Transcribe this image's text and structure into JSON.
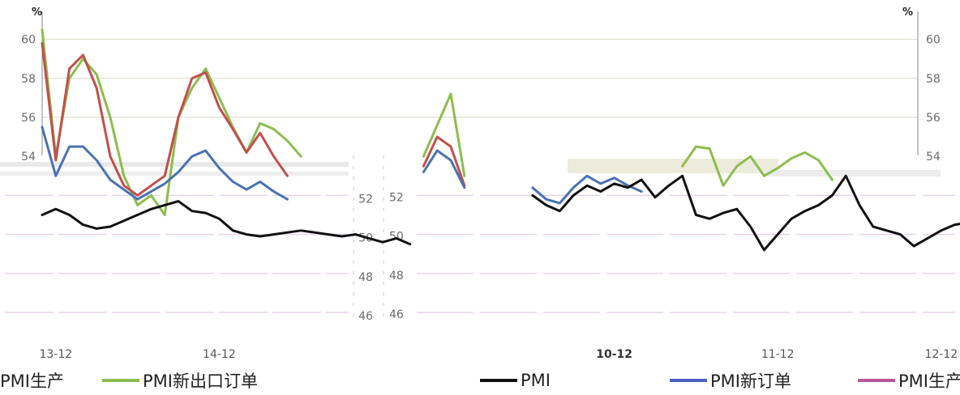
{
  "chart_data": {
    "type": "line",
    "unit_left": "%",
    "unit_right": "%",
    "y_ticks_upper_left": [
      "60",
      "58",
      "56",
      "54"
    ],
    "y_ticks_upper_right": [
      "60",
      "58",
      "56",
      "54"
    ],
    "y_ticks_lower_left": [
      "52",
      "50",
      "48",
      "46"
    ],
    "y_ticks_lower_right": [
      "52",
      "50",
      "48",
      "46"
    ],
    "ylim": [
      45.5,
      61
    ],
    "grid": true,
    "legend_position": "bottom",
    "x_ticks": [
      {
        "label": "13-12",
        "pos": 1,
        "bold": false
      },
      {
        "label": "14-12",
        "pos": 13,
        "bold": false
      },
      {
        "label": "10-12",
        "pos": 42,
        "bold": true
      },
      {
        "label": "11-12",
        "pos": 54,
        "bold": false
      },
      {
        "label": "12-12",
        "pos": 66,
        "bold": false
      }
    ],
    "series": [
      {
        "name": "PMI新出口订单",
        "color": "#8cbd4e",
        "segments": [
          {
            "x": [
              0,
              1,
              2,
              3,
              4,
              5,
              6,
              7,
              8,
              9,
              10,
              11,
              12,
              13,
              14,
              15,
              16,
              17,
              18,
              19
            ],
            "y": [
              60.5,
              54.0,
              58.0,
              59.0,
              58.2,
              56.0,
              53.0,
              51.5,
              52.0,
              51.0,
              56.0,
              57.5,
              58.5,
              57.0,
              55.5,
              54.2,
              55.7,
              55.4,
              54.8,
              54.0
            ]
          },
          {
            "x": [
              28,
              29,
              30,
              31
            ],
            "y": [
              54.0,
              55.6,
              57.2,
              53.0
            ]
          },
          {
            "x": [
              47,
              48,
              49,
              50,
              51,
              52,
              53,
              54,
              55,
              56,
              57,
              58
            ],
            "y": [
              53.5,
              54.5,
              54.4,
              52.5,
              53.5,
              54.0,
              53.0,
              53.4,
              53.9,
              54.2,
              53.8,
              52.8
            ]
          }
        ]
      },
      {
        "name": "PMI生产",
        "color": "#c0504d",
        "segments": [
          {
            "x": [
              0,
              1,
              2,
              3,
              4,
              5,
              6,
              7,
              8,
              9,
              10,
              11,
              12,
              13,
              14,
              15,
              16,
              17,
              18
            ],
            "y": [
              59.8,
              53.8,
              58.5,
              59.2,
              57.5,
              54.0,
              52.5,
              52.0,
              52.5,
              53.0,
              56.0,
              58.0,
              58.3,
              56.5,
              55.4,
              54.2,
              55.2,
              54.0,
              53.0
            ]
          },
          {
            "x": [
              28,
              29,
              30,
              31
            ],
            "y": [
              53.5,
              55.0,
              54.5,
              52.5
            ]
          }
        ]
      },
      {
        "name": "PMI新订单",
        "color": "#4a72b0",
        "segments": [
          {
            "x": [
              0,
              1,
              2,
              3,
              4,
              5,
              6,
              7,
              8,
              9,
              10,
              11,
              12,
              13,
              14,
              15,
              16,
              17,
              18
            ],
            "y": [
              55.5,
              53.0,
              54.5,
              54.5,
              53.8,
              52.8,
              52.3,
              51.8,
              52.2,
              52.6,
              53.2,
              54.0,
              54.3,
              53.4,
              52.7,
              52.3,
              52.7,
              52.2,
              51.8
            ]
          },
          {
            "x": [
              28,
              29,
              30,
              31
            ],
            "y": [
              53.2,
              54.3,
              53.8,
              52.4
            ]
          },
          {
            "x": [
              36,
              37,
              38,
              39,
              40,
              41,
              42,
              43,
              44
            ],
            "y": [
              52.4,
              51.8,
              51.6,
              52.4,
              53.0,
              52.6,
              52.9,
              52.5,
              52.2
            ]
          }
        ]
      },
      {
        "name": "PMI",
        "color": "#111111",
        "segments": [
          {
            "x": [
              0,
              1,
              2,
              3,
              4,
              5,
              6,
              7,
              8,
              9,
              10,
              11,
              12,
              13,
              14,
              15,
              16,
              17,
              18,
              19,
              20,
              21,
              22,
              23,
              24,
              25,
              26,
              27
            ],
            "y": [
              51.0,
              51.3,
              51.0,
              50.5,
              50.3,
              50.4,
              50.7,
              51.0,
              51.3,
              51.5,
              51.7,
              51.2,
              51.1,
              50.8,
              50.2,
              50.0,
              49.9,
              50.0,
              50.1,
              50.2,
              50.1,
              50.0,
              49.9,
              50.0,
              49.8,
              49.6,
              49.8,
              49.5
            ]
          },
          {
            "x": [
              36,
              37,
              38,
              39,
              40,
              41,
              42,
              43,
              44,
              45,
              46,
              47,
              48,
              49,
              50,
              51,
              52,
              53,
              54,
              55,
              56,
              57,
              58,
              59,
              60,
              61,
              62,
              63,
              64,
              65,
              66,
              67,
              68,
              69,
              70,
              71,
              72,
              73,
              74
            ],
            "y": [
              52.0,
              51.5,
              51.2,
              52.0,
              52.5,
              52.2,
              52.6,
              52.4,
              52.8,
              51.9,
              52.5,
              53.0,
              51.0,
              50.8,
              51.1,
              51.3,
              50.4,
              49.2,
              50.0,
              50.8,
              51.2,
              51.5,
              52.0,
              53.0,
              51.5,
              50.4,
              50.2,
              50.0,
              49.4,
              49.8,
              50.2,
              50.5,
              50.6,
              50.4,
              50.1,
              51.0,
              50.8,
              50.4,
              51.0
            ]
          }
        ]
      }
    ]
  }
}
